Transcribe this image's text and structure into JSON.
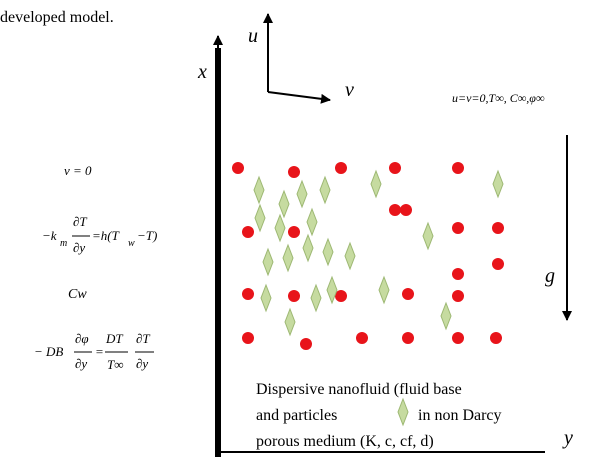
{
  "caption": "developed model.",
  "axes": {
    "x": "x",
    "y": "y",
    "u": "u",
    "v": "v"
  },
  "gravity": "g",
  "far_field": "u=v=0,T∞, C∞,φ∞",
  "boundary": {
    "velocity": "v = 0",
    "temperature": {
      "lhs": "−k",
      "sub": "m",
      "num": "∂T",
      "den": "∂y",
      "rhs": "=h(T",
      "rhs_sub": "w",
      "rhs_end": "−T)"
    },
    "concentration": "Cw",
    "particles": {
      "lhs": "− DB",
      "num1": "∂φ",
      "den1": "∂y",
      "eq": "=",
      "num2": "DT",
      "den2": "T∞",
      "num3": "∂T",
      "den3": "∂y"
    }
  },
  "description": {
    "line1": "Dispersive nanofluid (fluid base",
    "line2a": "and  particles",
    "line2b": "in non Darcy",
    "line3": "porous medium    (K, c, cf, d)"
  }
}
